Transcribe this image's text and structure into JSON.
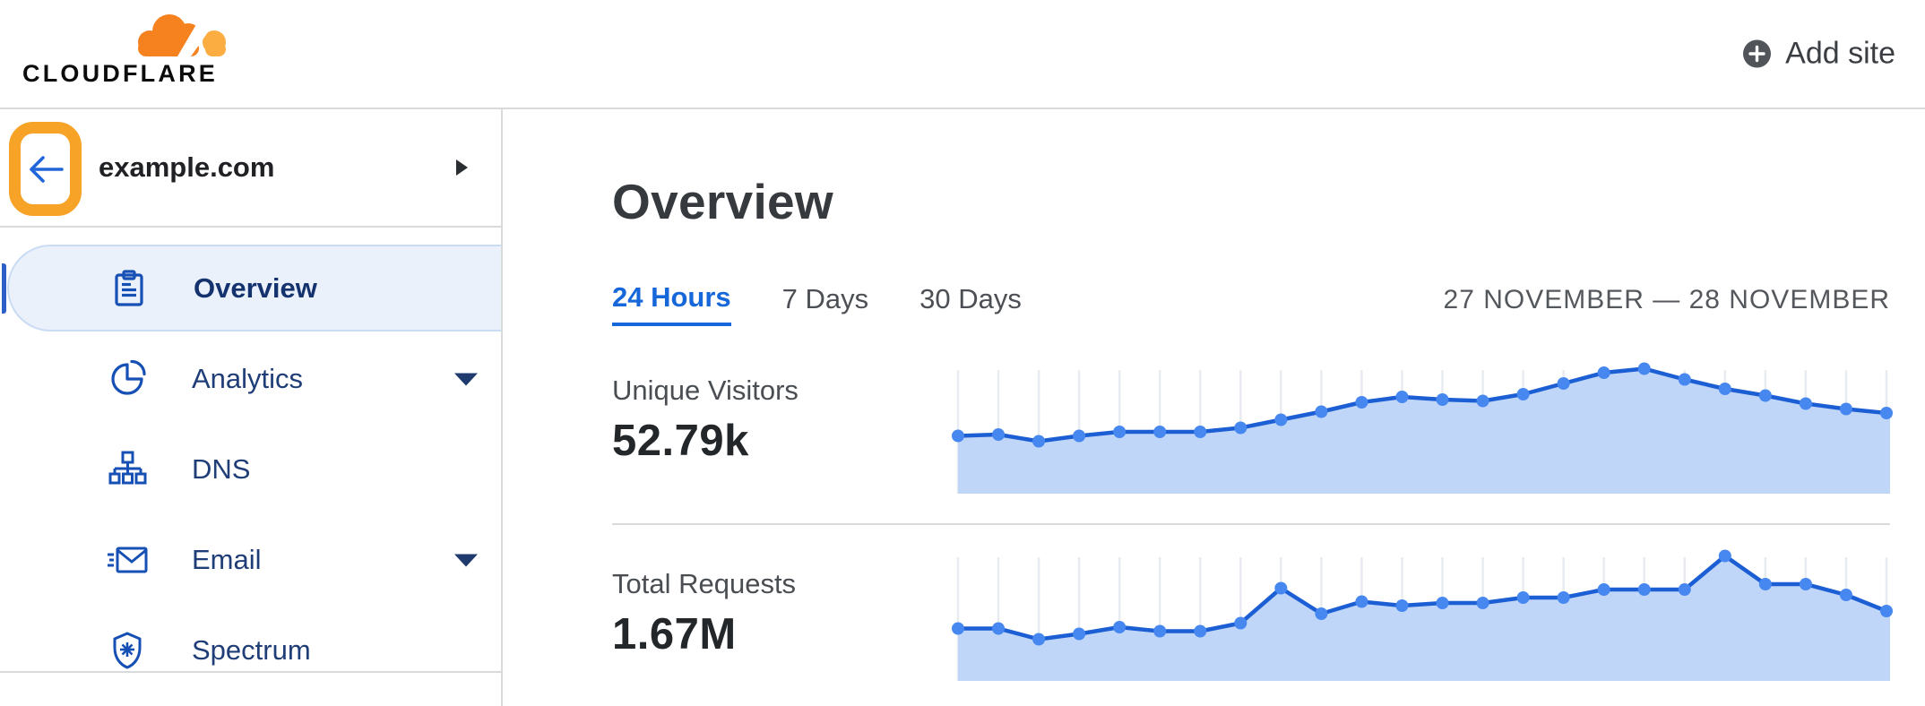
{
  "header": {
    "logo_text": "CLOUDFLARE",
    "add_site_label": "Add site"
  },
  "sidebar": {
    "site_name": "example.com",
    "items": [
      {
        "label": "Overview",
        "icon": "clipboard-icon",
        "active": true,
        "has_submenu": false
      },
      {
        "label": "Analytics",
        "icon": "pie-chart-icon",
        "active": false,
        "has_submenu": true
      },
      {
        "label": "DNS",
        "icon": "dns-tree-icon",
        "active": false,
        "has_submenu": false
      },
      {
        "label": "Email",
        "icon": "email-icon",
        "active": false,
        "has_submenu": true
      },
      {
        "label": "Spectrum",
        "icon": "shield-icon",
        "active": false,
        "has_submenu": false
      }
    ]
  },
  "main": {
    "title": "Overview",
    "tabs": [
      {
        "label": "24 Hours",
        "active": true
      },
      {
        "label": "7 Days",
        "active": false
      },
      {
        "label": "30 Days",
        "active": false
      }
    ],
    "date_range": "27 NOVEMBER — 28 NOVEMBER",
    "metrics": [
      {
        "label": "Unique Visitors",
        "value": "52.79k"
      },
      {
        "label": "Total Requests",
        "value": "1.67M"
      }
    ]
  },
  "colors": {
    "brand_orange": "#f6821f",
    "brand_orange_light": "#fbad41",
    "annotation_orange": "#f7a327",
    "link_blue": "#1667d9",
    "sidebar_icon_blue": "#1750b4",
    "sidebar_text_navy": "#1f3d77",
    "active_pill_bg": "#eaf1fb",
    "active_pill_border": "#cadbf4",
    "chart_dot": "#4787f0",
    "chart_line": "#1c5ed3",
    "chart_fill": "#bfd6f8",
    "chart_grid": "#e8ebf1",
    "divider": "#d9dadb"
  },
  "chart_data": [
    {
      "type": "area",
      "title": "Unique Visitors",
      "displayed_total": "52.79k",
      "x_axis": "24 hourly points, 27 November — 28 November (no tick labels shown)",
      "y_axis": "unlabeled (no scale shown); values are relative 0–1",
      "num_points": 24,
      "grid": "vertical line per point",
      "legend": "none",
      "values_relative": [
        0.43,
        0.44,
        0.39,
        0.43,
        0.46,
        0.46,
        0.46,
        0.49,
        0.55,
        0.61,
        0.68,
        0.72,
        0.7,
        0.69,
        0.74,
        0.82,
        0.9,
        0.93,
        0.85,
        0.78,
        0.73,
        0.67,
        0.63,
        0.6
      ]
    },
    {
      "type": "area",
      "title": "Total Requests",
      "displayed_total": "1.67M",
      "x_axis": "24 hourly points, 27 November — 28 November (no tick labels shown)",
      "y_axis": "unlabeled (no scale shown); values are relative 0–1",
      "num_points": 24,
      "grid": "vertical line per point",
      "legend": "none",
      "values_relative": [
        0.39,
        0.39,
        0.31,
        0.35,
        0.4,
        0.37,
        0.37,
        0.43,
        0.69,
        0.5,
        0.59,
        0.56,
        0.58,
        0.58,
        0.62,
        0.62,
        0.68,
        0.68,
        0.68,
        0.93,
        0.72,
        0.72,
        0.64,
        0.52
      ]
    }
  ]
}
